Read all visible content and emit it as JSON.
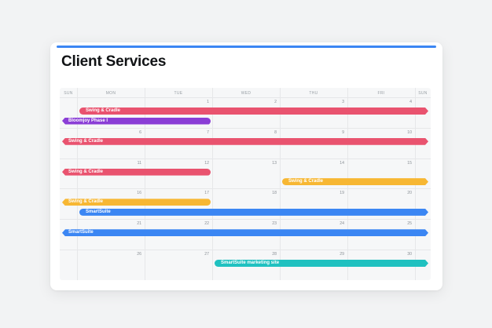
{
  "page": {
    "title": "Client Services"
  },
  "colors": {
    "accent": "#3b86f3",
    "pink": "#e9536f",
    "purple": "#8a3ed6",
    "orange": "#f7b733",
    "blue": "#3b86f3",
    "teal": "#20c1c0"
  },
  "calendar": {
    "weekdays": [
      "SUN",
      "MON",
      "TUE",
      "WED",
      "THU",
      "FRI",
      "SUN"
    ],
    "weeks": [
      {
        "days": [
          "",
          "",
          "1",
          "2",
          "3",
          "4",
          ""
        ],
        "events": [
          {
            "label": "Swing & Cradle",
            "color": "pink",
            "start": 1,
            "end": 7,
            "shape": "arrow-right"
          },
          {
            "label": "Bloomjoy Phase I",
            "color": "purple",
            "start": 0,
            "end": 3,
            "shape": "arrow-left"
          }
        ]
      },
      {
        "days": [
          "",
          "6",
          "7",
          "8",
          "9",
          "10",
          ""
        ],
        "events": [
          {
            "label": "Swing & Cradle",
            "color": "pink",
            "start": 0,
            "end": 7,
            "shape": "arrow-both"
          }
        ]
      },
      {
        "days": [
          "",
          "11",
          "12",
          "13",
          "14",
          "15",
          ""
        ],
        "events": [
          {
            "label": "Swing & Cradle",
            "color": "pink",
            "start": 0,
            "end": 3,
            "shape": "arrow-left"
          },
          {
            "label": "Swing & Cradle",
            "color": "orange",
            "start": 4,
            "end": 7,
            "shape": "arrow-right"
          }
        ]
      },
      {
        "days": [
          "",
          "16",
          "17",
          "18",
          "19",
          "20",
          ""
        ],
        "events": [
          {
            "label": "Swing & Cradle",
            "color": "orange",
            "start": 0,
            "end": 3,
            "shape": "arrow-left"
          },
          {
            "label": "SmartSuite",
            "color": "blue",
            "start": 1,
            "end": 7,
            "shape": "arrow-right"
          }
        ]
      },
      {
        "days": [
          "",
          "21",
          "22",
          "23",
          "24",
          "25",
          ""
        ],
        "events": [
          {
            "label": "SmartSuite",
            "color": "blue",
            "start": 0,
            "end": 7,
            "shape": "arrow-both"
          }
        ]
      },
      {
        "days": [
          "",
          "26",
          "27",
          "28",
          "29",
          "30",
          ""
        ],
        "events": [
          {
            "label": "SmartSuite marketing site",
            "color": "teal",
            "start": 3,
            "end": 7,
            "shape": "arrow-right"
          }
        ]
      }
    ]
  }
}
